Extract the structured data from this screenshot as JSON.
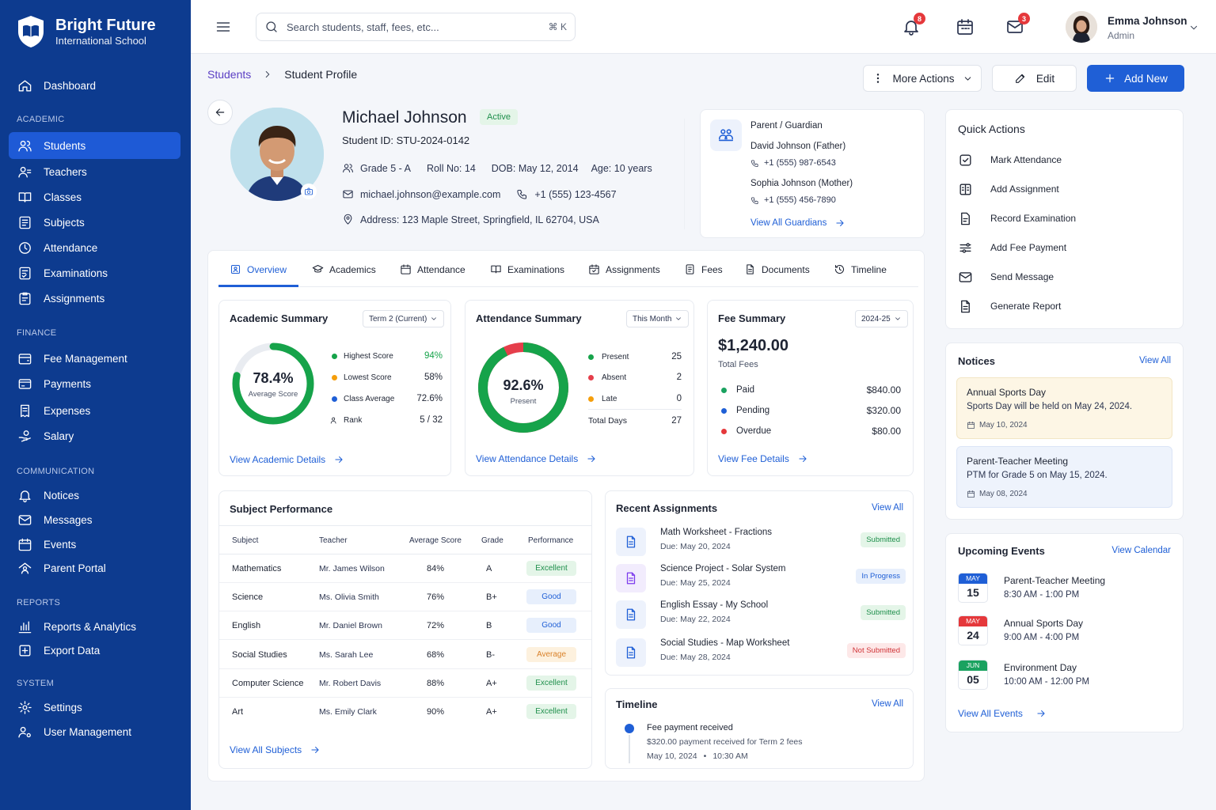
{
  "brand": {
    "name": "Bright Future",
    "subtitle": "International School"
  },
  "nav": {
    "dashboard": "Dashboard",
    "sections": {
      "academic": "ACADEMIC",
      "finance": "FINANCE",
      "communication": "COMMUNICATION",
      "reports": "REPORTS",
      "system": "SYSTEM"
    },
    "academic": [
      "Students",
      "Teachers",
      "Classes",
      "Subjects",
      "Attendance",
      "Examinations",
      "Assignments"
    ],
    "finance": [
      "Fee Management",
      "Payments",
      "Expenses",
      "Salary"
    ],
    "communication": [
      "Notices",
      "Messages",
      "Events",
      "Parent Portal"
    ],
    "reports": [
      "Reports & Analytics",
      "Export Data"
    ],
    "system": [
      "Settings",
      "User Management"
    ]
  },
  "topbar": {
    "search_placeholder": "Search students, staff, fees, etc...",
    "shortcut": "⌘ K",
    "notif_count": "8",
    "mail_count": "3",
    "user_name": "Emma Johnson",
    "user_role": "Admin"
  },
  "breadcrumb": {
    "parent": "Students",
    "current": "Student Profile"
  },
  "actions": {
    "more": "More Actions",
    "edit": "Edit",
    "add": "Add New"
  },
  "student": {
    "name": "Michael Johnson",
    "status": "Active",
    "id": "Student ID: STU-2024-0142",
    "grade": "Grade 5 - A",
    "roll": "Roll No: 14",
    "dob": "DOB: May 12, 2014",
    "age": "Age: 10 years",
    "email": "michael.johnson@example.com",
    "phone": "+1 (555) 123-4567",
    "address": "Address: 123 Maple Street, Springfield, IL 62704, USA"
  },
  "guardian": {
    "title": "Parent / Guardian",
    "father": "David Johnson (Father)",
    "father_phone": "+1 (555) 987-6543",
    "mother": "Sophia Johnson (Mother)",
    "mother_phone": "+1 (555) 456-7890",
    "link": "View All Guardians"
  },
  "tabs": [
    "Overview",
    "Academics",
    "Attendance",
    "Examinations",
    "Assignments",
    "Fees",
    "Documents",
    "Timeline"
  ],
  "academic_summary": {
    "title": "Academic Summary",
    "filter": "Term 2 (Current)",
    "score": "78.4%",
    "score_label": "Average Score",
    "score_fraction": 0.784,
    "rows": [
      {
        "label": "Highest Score",
        "value": "94%"
      },
      {
        "label": "Lowest Score",
        "value": "58%"
      },
      {
        "label": "Class Average",
        "value": "72.6%"
      },
      {
        "label": "Rank",
        "value": "5 / 32"
      }
    ],
    "link": "View Academic Details"
  },
  "attendance_summary": {
    "title": "Attendance Summary",
    "filter": "This Month",
    "pct": "92.6%",
    "pct_label": "Present",
    "present_fraction": 0.926,
    "rows": [
      {
        "label": "Present",
        "value": "25"
      },
      {
        "label": "Absent",
        "value": "2"
      },
      {
        "label": "Late",
        "value": "0"
      }
    ],
    "total_label": "Total Days",
    "total": "27",
    "link": "View Attendance Details"
  },
  "fee_summary": {
    "title": "Fee Summary",
    "filter": "2024-25",
    "total": "$1,240.00",
    "total_label": "Total Fees",
    "rows": [
      {
        "label": "Paid",
        "value": "$840.00",
        "color": "#1aa260"
      },
      {
        "label": "Pending",
        "value": "$320.00",
        "color": "#1f5fd6"
      },
      {
        "label": "Overdue",
        "value": "$80.00",
        "color": "#e5383b"
      }
    ],
    "link": "View Fee Details"
  },
  "quick_actions": {
    "title": "Quick Actions",
    "items": [
      "Mark Attendance",
      "Add Assignment",
      "Record Examination",
      "Add Fee Payment",
      "Send Message",
      "Generate Report"
    ]
  },
  "notices": {
    "title": "Notices",
    "view_all": "View All",
    "items": [
      {
        "title": "Annual Sports Day",
        "body": "Sports Day will be held on May 24, 2024.",
        "date": "May 10, 2024"
      },
      {
        "title": "Parent-Teacher Meeting",
        "body": "PTM for Grade 5 on May 15, 2024.",
        "date": "May 08, 2024"
      }
    ]
  },
  "subject_performance": {
    "title": "Subject Performance",
    "headers": [
      "Subject",
      "Teacher",
      "Average Score",
      "Grade",
      "Performance"
    ],
    "rows": [
      {
        "subject": "Mathematics",
        "teacher": "Mr. James Wilson",
        "score": "84%",
        "grade": "A",
        "perf": "Excellent"
      },
      {
        "subject": "Science",
        "teacher": "Ms. Olivia Smith",
        "score": "76%",
        "grade": "B+",
        "perf": "Good"
      },
      {
        "subject": "English",
        "teacher": "Mr. Daniel Brown",
        "score": "72%",
        "grade": "B",
        "perf": "Good"
      },
      {
        "subject": "Social Studies",
        "teacher": "Ms. Sarah Lee",
        "score": "68%",
        "grade": "B-",
        "perf": "Average"
      },
      {
        "subject": "Computer Science",
        "teacher": "Mr. Robert Davis",
        "score": "88%",
        "grade": "A+",
        "perf": "Excellent"
      },
      {
        "subject": "Art",
        "teacher": "Ms. Emily Clark",
        "score": "90%",
        "grade": "A+",
        "perf": "Excellent"
      }
    ],
    "link": "View All Subjects"
  },
  "recent_assignments": {
    "title": "Recent Assignments",
    "view_all": "View All",
    "items": [
      {
        "title": "Math Worksheet - Fractions",
        "due": "Due: May 20, 2024",
        "status": "Submitted"
      },
      {
        "title": "Science Project - Solar System",
        "due": "Due: May 25, 2024",
        "status": "In Progress"
      },
      {
        "title": "English Essay - My School",
        "due": "Due: May 22, 2024",
        "status": "Submitted"
      },
      {
        "title": "Social Studies - Map Worksheet",
        "due": "Due: May 28, 2024",
        "status": "Not Submitted"
      }
    ]
  },
  "timeline": {
    "title": "Timeline",
    "view_all": "View All",
    "event": "Fee payment received",
    "detail": "$320.00 payment received for Term 2 fees",
    "date": "May 10, 2024",
    "dot": "•",
    "time": "10:30 AM"
  },
  "events": {
    "title": "Upcoming Events",
    "view_all": "View Calendar",
    "items": [
      {
        "month": "MAY",
        "day": "15",
        "title": "Parent-Teacher Meeting",
        "time": "8:30 AM - 1:00 PM",
        "color": "#1f5fd6"
      },
      {
        "month": "MAY",
        "day": "24",
        "title": "Annual Sports Day",
        "time": "9:00 AM - 4:00 PM",
        "color": "#e5383b"
      },
      {
        "month": "JUN",
        "day": "05",
        "title": "Environment Day",
        "time": "10:00 AM - 12:00 PM",
        "color": "#1aa260"
      }
    ],
    "link": "View All Events"
  }
}
